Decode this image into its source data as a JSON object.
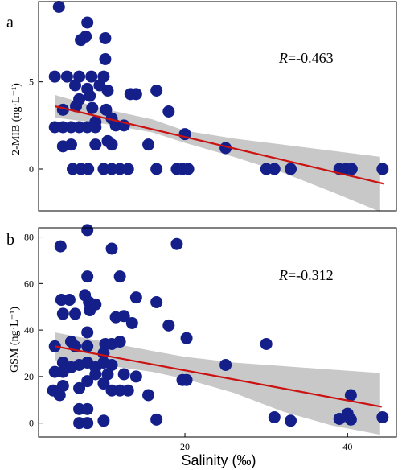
{
  "chart_data": [
    {
      "type": "scatter",
      "panel": "a",
      "ylabel": "2-MIB (ng·L⁻¹)",
      "annotation_label": "R",
      "annotation_value": "=-0.463",
      "xlim": [
        2,
        46
      ],
      "ylim": [
        -2.4,
        9.6
      ],
      "yticks": [
        0,
        5
      ],
      "xticks": [],
      "colors": {
        "point": "#141f8a",
        "fit": "#cc1111",
        "band": "#c8c8c8"
      },
      "fit": {
        "x1": 4,
        "y1": 3.6,
        "x2": 44.5,
        "y2": -0.85
      },
      "band": {
        "upper": [
          [
            4,
            4.25
          ],
          [
            10,
            3.45
          ],
          [
            16,
            2.85
          ],
          [
            20,
            2.2
          ],
          [
            26,
            1.75
          ],
          [
            32,
            1.4
          ],
          [
            38,
            1.05
          ],
          [
            44,
            0.7
          ]
        ],
        "lower": [
          [
            4,
            2.95
          ],
          [
            10,
            2.6
          ],
          [
            16,
            2.1
          ],
          [
            20,
            1.5
          ],
          [
            26,
            0.7
          ],
          [
            32,
            -0.2
          ],
          [
            38,
            -1.3
          ],
          [
            44,
            -2.45
          ]
        ]
      },
      "points": [
        [
          4.5,
          9.3
        ],
        [
          8.0,
          8.4
        ],
        [
          7.2,
          7.4
        ],
        [
          7.8,
          7.6
        ],
        [
          10.2,
          7.5
        ],
        [
          10.2,
          6.3
        ],
        [
          4,
          5.3
        ],
        [
          5.5,
          5.3
        ],
        [
          7,
          5.3
        ],
        [
          8.5,
          5.3
        ],
        [
          10,
          5.3
        ],
        [
          6.5,
          4.8
        ],
        [
          8,
          4.6
        ],
        [
          9.5,
          4.8
        ],
        [
          10.5,
          4.5
        ],
        [
          7,
          4.0
        ],
        [
          8.3,
          4.2
        ],
        [
          13.3,
          4.3
        ],
        [
          14,
          4.3
        ],
        [
          16.5,
          4.5
        ],
        [
          5,
          3.4
        ],
        [
          6.6,
          3.6
        ],
        [
          8.6,
          3.5
        ],
        [
          10.3,
          3.4
        ],
        [
          18,
          3.3
        ],
        [
          11,
          2.9
        ],
        [
          9,
          2.7
        ],
        [
          4,
          2.4
        ],
        [
          5,
          2.4
        ],
        [
          6,
          2.4
        ],
        [
          7,
          2.4
        ],
        [
          8,
          2.4
        ],
        [
          9,
          2.4
        ],
        [
          11.5,
          2.5
        ],
        [
          12.5,
          2.5
        ],
        [
          20,
          2.0
        ],
        [
          10.5,
          1.6
        ],
        [
          5,
          1.3
        ],
        [
          6,
          1.4
        ],
        [
          9,
          1.4
        ],
        [
          11,
          1.4
        ],
        [
          15.5,
          1.4
        ],
        [
          25,
          1.2
        ],
        [
          6.2,
          0
        ],
        [
          7.2,
          0
        ],
        [
          8.1,
          0
        ],
        [
          10,
          0
        ],
        [
          11,
          0
        ],
        [
          12,
          0
        ],
        [
          13,
          0
        ],
        [
          16.5,
          0
        ],
        [
          19,
          0
        ],
        [
          19.7,
          0
        ],
        [
          20.4,
          0
        ],
        [
          30,
          0
        ],
        [
          31,
          0
        ],
        [
          33,
          0
        ],
        [
          39,
          0
        ],
        [
          39.8,
          0
        ],
        [
          40.5,
          0
        ],
        [
          44.3,
          0
        ]
      ]
    },
    {
      "type": "scatter",
      "panel": "b",
      "ylabel": "GSM (ng·L⁻¹)",
      "annotation_label": "R",
      "annotation_value": "=-0.312",
      "xlim": [
        2,
        46
      ],
      "ylim": [
        -6,
        84
      ],
      "yticks": [
        0,
        20,
        40,
        60,
        80
      ],
      "xticks": [
        20,
        40
      ],
      "xlabel": "Salinity (‰)",
      "colors": {
        "point": "#141f8a",
        "fit": "#cc1111",
        "band": "#c8c8c8"
      },
      "fit": {
        "x1": 4,
        "y1": 33,
        "x2": 44.2,
        "y2": 7
      },
      "band": {
        "upper": [
          [
            4,
            39
          ],
          [
            10,
            35
          ],
          [
            16,
            31
          ],
          [
            20,
            28.5
          ],
          [
            26,
            26
          ],
          [
            32,
            24.5
          ],
          [
            38,
            23
          ],
          [
            44,
            21.5
          ]
        ],
        "lower": [
          [
            4,
            27
          ],
          [
            10,
            25
          ],
          [
            16,
            22
          ],
          [
            20,
            19
          ],
          [
            26,
            13
          ],
          [
            32,
            5
          ],
          [
            38,
            -1
          ],
          [
            44,
            -5
          ]
        ]
      },
      "points": [
        [
          8,
          83
        ],
        [
          4.7,
          76
        ],
        [
          11,
          75
        ],
        [
          19,
          77
        ],
        [
          8,
          63
        ],
        [
          12,
          63
        ],
        [
          4.8,
          53
        ],
        [
          5.8,
          53
        ],
        [
          7.7,
          55
        ],
        [
          8.2,
          52
        ],
        [
          9,
          51
        ],
        [
          14,
          54
        ],
        [
          16.5,
          52
        ],
        [
          5,
          47
        ],
        [
          6.5,
          47
        ],
        [
          8.3,
          48.5
        ],
        [
          11.5,
          45.5
        ],
        [
          12.5,
          46
        ],
        [
          13.5,
          43
        ],
        [
          18,
          42
        ],
        [
          8,
          39
        ],
        [
          20.2,
          36.5
        ],
        [
          30,
          34
        ],
        [
          4,
          33
        ],
        [
          6,
          35
        ],
        [
          6.5,
          33
        ],
        [
          8,
          33
        ],
        [
          10.2,
          34
        ],
        [
          11,
          34
        ],
        [
          12,
          35
        ],
        [
          10,
          30
        ],
        [
          5,
          26
        ],
        [
          6,
          24
        ],
        [
          7,
          25
        ],
        [
          8,
          26
        ],
        [
          9,
          24
        ],
        [
          10,
          26
        ],
        [
          11,
          25
        ],
        [
          4,
          22
        ],
        [
          5,
          22
        ],
        [
          9,
          21
        ],
        [
          10.5,
          21
        ],
        [
          12.5,
          21
        ],
        [
          14,
          20
        ],
        [
          25,
          25
        ],
        [
          5,
          16
        ],
        [
          7,
          15
        ],
        [
          8,
          18
        ],
        [
          10,
          17
        ],
        [
          11,
          14
        ],
        [
          12,
          14
        ],
        [
          13,
          14
        ],
        [
          19.7,
          18.5
        ],
        [
          20.2,
          18.5
        ],
        [
          3.8,
          14
        ],
        [
          4.6,
          12
        ],
        [
          15.5,
          12
        ],
        [
          40.4,
          12
        ],
        [
          10,
          1
        ],
        [
          16.5,
          1.5
        ],
        [
          7,
          6
        ],
        [
          8,
          6
        ],
        [
          7,
          0
        ],
        [
          8,
          0
        ],
        [
          31,
          2.5
        ],
        [
          33,
          1
        ],
        [
          39,
          1.8
        ],
        [
          40,
          4
        ],
        [
          40.4,
          1.5
        ],
        [
          44.3,
          2.5
        ]
      ]
    }
  ]
}
